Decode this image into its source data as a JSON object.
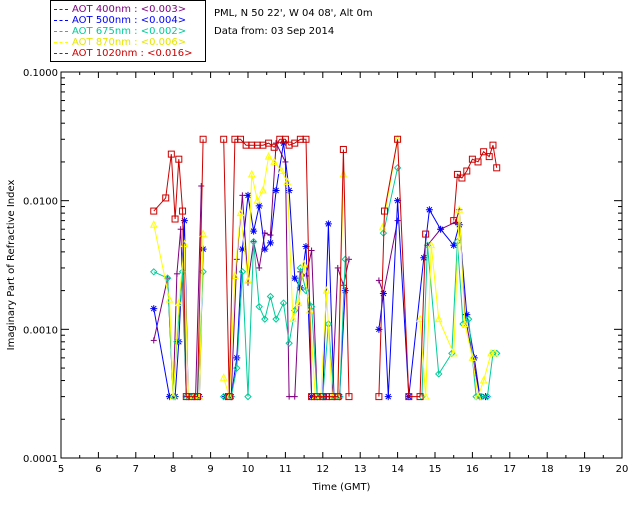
{
  "chart_data": {
    "type": "line",
    "title": "",
    "xlabel": "Time (GMT)",
    "ylabel": "Imaginary Part of Refractive Index",
    "xlim": [
      5,
      20
    ],
    "ylim": [
      0.0001,
      0.1
    ],
    "yscale": "log",
    "xticks": [
      "5",
      "6",
      "7",
      "8",
      "9",
      "10",
      "11",
      "12",
      "13",
      "14",
      "15",
      "16",
      "17",
      "18",
      "19",
      "20"
    ],
    "yticks": [
      "0.0001",
      "0.0010",
      "0.0100",
      "0.1000"
    ],
    "info_lines": [
      "PML, N 50 22', W 04 08', Alt 0m",
      "Data from: 03 Sep 2014"
    ],
    "series": [
      {
        "name": "AOT  400nm : <0.003>",
        "color": "#7f007f",
        "marker": "plus",
        "points": [
          [
            7.48,
            0.00082
          ],
          [
            7.85,
            0.0025
          ],
          [
            8.0,
            0.0003
          ],
          [
            8.1,
            0.0027
          ],
          [
            8.2,
            0.006
          ],
          [
            8.35,
            0.0003
          ],
          [
            8.5,
            0.0003
          ],
          [
            8.6,
            0.0003
          ],
          [
            8.75,
            0.013
          ],
          [
            9.4,
            0.0003
          ],
          [
            9.55,
            0.0003
          ],
          [
            9.7,
            0.0035
          ],
          [
            9.85,
            0.011
          ],
          [
            10.0,
            0.0023
          ],
          [
            10.15,
            0.0048
          ],
          [
            10.3,
            0.003
          ],
          [
            10.45,
            0.0056
          ],
          [
            10.6,
            0.0054
          ],
          [
            10.75,
            0.028
          ],
          [
            11.0,
            0.02
          ],
          [
            11.1,
            0.0003
          ],
          [
            11.25,
            0.0003
          ],
          [
            11.4,
            0.0028
          ],
          [
            11.55,
            0.0026
          ],
          [
            11.7,
            0.0041
          ],
          [
            11.85,
            0.0003
          ],
          [
            12.0,
            0.0003
          ],
          [
            12.1,
            0.0003
          ],
          [
            12.25,
            0.0003
          ],
          [
            12.4,
            0.003
          ],
          [
            12.55,
            0.0022
          ],
          [
            12.7,
            0.0035
          ],
          [
            13.5,
            0.0024
          ],
          [
            13.62,
            0.0019
          ],
          [
            14.0,
            0.007
          ],
          [
            14.8,
            0.0045
          ],
          [
            15.15,
            0.006
          ],
          [
            15.55,
            0.0068
          ],
          [
            15.65,
            0.0085
          ],
          [
            15.8,
            0.0013
          ],
          [
            16.2,
            0.0003
          ],
          [
            16.35,
            0.0003
          ]
        ]
      },
      {
        "name": "AOT  500nm : <0.004>",
        "color": "#0000ff",
        "marker": "star",
        "points": [
          [
            7.48,
            0.00145
          ],
          [
            7.9,
            0.0003
          ],
          [
            8.05,
            0.0003
          ],
          [
            8.15,
            0.0008
          ],
          [
            8.3,
            0.007
          ],
          [
            8.4,
            0.0003
          ],
          [
            8.55,
            0.0003
          ],
          [
            8.7,
            0.0003
          ],
          [
            8.8,
            0.0042
          ],
          [
            9.4,
            0.0003
          ],
          [
            9.55,
            0.0003
          ],
          [
            9.7,
            0.0006
          ],
          [
            9.85,
            0.0042
          ],
          [
            10.0,
            0.011
          ],
          [
            10.15,
            0.0058
          ],
          [
            10.3,
            0.0091
          ],
          [
            10.45,
            0.0042
          ],
          [
            10.6,
            0.0047
          ],
          [
            10.75,
            0.012
          ],
          [
            10.95,
            0.028
          ],
          [
            11.1,
            0.012
          ],
          [
            11.25,
            0.0025
          ],
          [
            11.4,
            0.0021
          ],
          [
            11.55,
            0.0044
          ],
          [
            11.7,
            0.0003
          ],
          [
            11.85,
            0.0003
          ],
          [
            12.0,
            0.0003
          ],
          [
            12.15,
            0.0066
          ],
          [
            12.3,
            0.0003
          ],
          [
            12.45,
            0.0003
          ],
          [
            12.6,
            0.002
          ],
          [
            13.5,
            0.001
          ],
          [
            13.62,
            0.0019
          ],
          [
            13.75,
            0.0003
          ],
          [
            14.0,
            0.01
          ],
          [
            14.3,
            0.0003
          ],
          [
            14.7,
            0.0036
          ],
          [
            14.85,
            0.0085
          ],
          [
            15.15,
            0.006
          ],
          [
            15.5,
            0.0045
          ],
          [
            15.65,
            0.0065
          ],
          [
            15.85,
            0.0013
          ],
          [
            16.05,
            0.0006
          ],
          [
            16.2,
            0.0003
          ],
          [
            16.35,
            0.0003
          ]
        ]
      },
      {
        "name": "AOT  675nm : <0.002>",
        "color": "#00cc99",
        "marker": "diamond",
        "points": [
          [
            7.48,
            0.0028
          ],
          [
            7.85,
            0.0025
          ],
          [
            8.0,
            0.0003
          ],
          [
            8.1,
            0.0008
          ],
          [
            8.25,
            0.0028
          ],
          [
            8.35,
            0.0003
          ],
          [
            8.5,
            0.0003
          ],
          [
            8.65,
            0.0003
          ],
          [
            8.8,
            0.0028
          ],
          [
            9.35,
            0.0003
          ],
          [
            9.55,
            0.0003
          ],
          [
            9.7,
            0.0005
          ],
          [
            9.85,
            0.0028
          ],
          [
            10.0,
            0.0003
          ],
          [
            10.15,
            0.0048
          ],
          [
            10.3,
            0.0015
          ],
          [
            10.45,
            0.0012
          ],
          [
            10.6,
            0.0018
          ],
          [
            10.75,
            0.0012
          ],
          [
            10.95,
            0.0016
          ],
          [
            11.1,
            0.00078
          ],
          [
            11.25,
            0.0014
          ],
          [
            11.4,
            0.003
          ],
          [
            11.55,
            0.002
          ],
          [
            11.7,
            0.0015
          ],
          [
            11.85,
            0.0003
          ],
          [
            12.0,
            0.0003
          ],
          [
            12.15,
            0.0011
          ],
          [
            12.3,
            0.0003
          ],
          [
            12.45,
            0.0003
          ],
          [
            12.6,
            0.0035
          ],
          [
            13.62,
            0.0056
          ],
          [
            14.0,
            0.018
          ],
          [
            14.65,
            0.0003
          ],
          [
            14.8,
            0.0045
          ],
          [
            15.1,
            0.00045
          ],
          [
            15.45,
            0.00065
          ],
          [
            15.6,
            0.0048
          ],
          [
            15.75,
            0.0011
          ],
          [
            15.9,
            0.0012
          ],
          [
            16.1,
            0.0003
          ],
          [
            16.25,
            0.0003
          ],
          [
            16.4,
            0.0003
          ],
          [
            16.55,
            0.00065
          ],
          [
            16.65,
            0.00065
          ]
        ]
      },
      {
        "name": "AOT  870nm : <0.006>",
        "color": "#ffff00",
        "marker": "triangle",
        "points": [
          [
            7.48,
            0.0065
          ],
          [
            7.9,
            0.0017
          ],
          [
            8.0,
            0.0003
          ],
          [
            8.15,
            0.0016
          ],
          [
            8.3,
            0.0046
          ],
          [
            8.4,
            0.0003
          ],
          [
            8.55,
            0.0003
          ],
          [
            8.7,
            0.0003
          ],
          [
            8.8,
            0.0055
          ],
          [
            9.35,
            0.00042
          ],
          [
            9.5,
            0.0003
          ],
          [
            9.65,
            0.0026
          ],
          [
            9.8,
            0.008
          ],
          [
            10.0,
            0.0024
          ],
          [
            10.1,
            0.016
          ],
          [
            10.25,
            0.01
          ],
          [
            10.4,
            0.012
          ],
          [
            10.55,
            0.022
          ],
          [
            10.7,
            0.02
          ],
          [
            10.9,
            0.017
          ],
          [
            11.05,
            0.014
          ],
          [
            11.2,
            0.0012
          ],
          [
            11.35,
            0.0016
          ],
          [
            11.5,
            0.0032
          ],
          [
            11.65,
            0.0014
          ],
          [
            11.8,
            0.0003
          ],
          [
            11.95,
            0.0003
          ],
          [
            12.1,
            0.002
          ],
          [
            12.25,
            0.0003
          ],
          [
            12.4,
            0.0003
          ],
          [
            12.55,
            0.016
          ],
          [
            13.6,
            0.0062
          ],
          [
            14.0,
            0.03
          ],
          [
            14.6,
            0.0012
          ],
          [
            14.75,
            0.0003
          ],
          [
            14.9,
            0.0045
          ],
          [
            15.1,
            0.0012
          ],
          [
            15.5,
            0.00065
          ],
          [
            15.65,
            0.0085
          ],
          [
            15.8,
            0.0011
          ],
          [
            16.0,
            0.0006
          ],
          [
            16.15,
            0.0003
          ],
          [
            16.3,
            0.0004
          ],
          [
            16.5,
            0.00065
          ],
          [
            16.6,
            0.00065
          ]
        ]
      },
      {
        "name": "AOT 1020nm : <0.016>",
        "color": "#cc0000",
        "marker": "square",
        "points": [
          [
            7.48,
            0.0083
          ],
          [
            7.8,
            0.0105
          ],
          [
            7.95,
            0.023
          ],
          [
            8.05,
            0.0072
          ],
          [
            8.15,
            0.021
          ],
          [
            8.25,
            0.0083
          ],
          [
            8.35,
            0.0003
          ],
          [
            8.5,
            0.0003
          ],
          [
            8.65,
            0.0003
          ],
          [
            8.8,
            0.03
          ],
          [
            9.35,
            0.03
          ],
          [
            9.5,
            0.0003
          ],
          [
            9.65,
            0.03
          ],
          [
            9.8,
            0.03
          ],
          [
            9.95,
            0.027
          ],
          [
            10.1,
            0.027
          ],
          [
            10.25,
            0.027
          ],
          [
            10.4,
            0.027
          ],
          [
            10.55,
            0.028
          ],
          [
            10.7,
            0.026
          ],
          [
            10.85,
            0.03
          ],
          [
            11.0,
            0.03
          ],
          [
            11.1,
            0.027
          ],
          [
            11.25,
            0.028
          ],
          [
            11.4,
            0.03
          ],
          [
            11.55,
            0.03
          ],
          [
            11.7,
            0.0003
          ],
          [
            11.85,
            0.0003
          ],
          [
            12.0,
            0.0003
          ],
          [
            12.1,
            0.0003
          ],
          [
            12.25,
            0.0003
          ],
          [
            12.4,
            0.0003
          ],
          [
            12.55,
            0.025
          ],
          [
            12.7,
            0.0003
          ],
          [
            13.5,
            0.0003
          ],
          [
            13.65,
            0.0083
          ],
          [
            14.0,
            0.03
          ],
          [
            14.3,
            0.0003
          ],
          [
            14.6,
            0.0003
          ],
          [
            14.75,
            0.0055
          ],
          [
            15.5,
            0.007
          ],
          [
            15.6,
            0.016
          ],
          [
            15.72,
            0.015
          ],
          [
            15.85,
            0.017
          ],
          [
            16.0,
            0.021
          ],
          [
            16.15,
            0.02
          ],
          [
            16.3,
            0.024
          ],
          [
            16.45,
            0.022
          ],
          [
            16.55,
            0.027
          ],
          [
            16.65,
            0.018
          ]
        ]
      }
    ]
  }
}
